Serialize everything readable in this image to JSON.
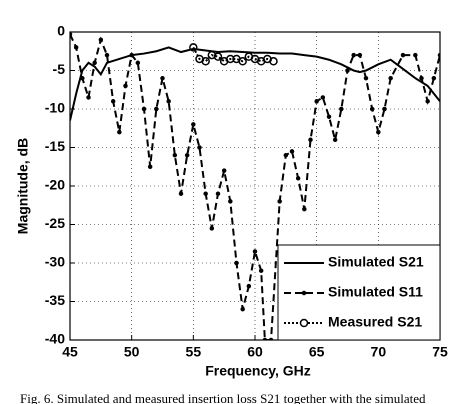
{
  "chart_data": {
    "type": "line",
    "xlabel": "Frequency, GHz",
    "ylabel": "Magnitude, dB",
    "caption": "Fig. 6. Simulated and measured insertion loss S21 together with the simulated",
    "xlim": [
      45,
      75
    ],
    "xticks": [
      45,
      50,
      55,
      60,
      65,
      70,
      75
    ],
    "ylim": [
      -40,
      0
    ],
    "yticks": [
      -40,
      -35,
      -30,
      -25,
      -20,
      -15,
      -10,
      -5,
      0
    ],
    "grid": true,
    "legend": "lower right",
    "series": [
      {
        "name": "Simulated S21",
        "color": "#000000",
        "style": "solid",
        "marker": "none",
        "x": [
          45,
          45.5,
          46,
          46.5,
          47,
          47.5,
          48,
          49,
          50,
          51,
          52,
          53,
          54,
          55,
          56,
          57,
          58,
          59,
          60,
          61,
          62,
          63,
          64,
          65,
          66,
          67,
          68,
          68.5,
          69,
          70,
          71,
          72,
          73,
          74,
          75
        ],
        "values": [
          -11.5,
          -8,
          -5,
          -4,
          -4.5,
          -5.5,
          -4,
          -3.5,
          -3,
          -2.8,
          -2.5,
          -2,
          -2.6,
          -2.2,
          -2.4,
          -2.6,
          -2.5,
          -2.6,
          -2.7,
          -2.7,
          -2.8,
          -2.8,
          -3,
          -3.2,
          -3.6,
          -4.2,
          -5,
          -5.2,
          -5,
          -4.2,
          -3.6,
          -4.8,
          -6,
          -7,
          -9
        ]
      },
      {
        "name": "Simulated S11",
        "color": "#000000",
        "style": "dashed",
        "marker": "dot",
        "x": [
          45,
          45.5,
          46,
          46.5,
          47,
          47.5,
          48,
          48.5,
          49,
          49.5,
          50,
          50.5,
          51,
          51.5,
          52,
          52.5,
          53,
          53.5,
          54,
          54.5,
          55,
          55.5,
          56,
          56.5,
          57,
          57.5,
          58,
          58.5,
          59,
          59.5,
          60,
          60.5,
          60.8,
          61.3,
          62,
          62.5,
          63,
          63.5,
          64,
          64.5,
          65,
          65.5,
          66,
          66.5,
          67,
          67.5,
          68,
          68.5,
          69,
          69.5,
          70,
          70.5,
          71,
          72,
          73,
          73.5,
          74,
          74.5,
          75
        ],
        "values": [
          -0.3,
          -2,
          -6,
          -8.5,
          -4,
          -1,
          -3,
          -9,
          -13,
          -7,
          -3,
          -4,
          -10,
          -17.5,
          -10,
          -6,
          -9,
          -16,
          -21,
          -16,
          -12,
          -15,
          -21,
          -25.5,
          -21,
          -18,
          -22,
          -30,
          -36,
          -33,
          -28.5,
          -31,
          -40,
          -40,
          -22,
          -16,
          -15.5,
          -19,
          -23,
          -14,
          -9,
          -8.5,
          -11,
          -14,
          -10,
          -5,
          -3,
          -3,
          -6,
          -10,
          -13,
          -10,
          -6,
          -3,
          -3,
          -6,
          -9,
          -6,
          -3
        ]
      },
      {
        "name": "Measured S21",
        "color": "#000000",
        "style": "dotted",
        "marker": "circle",
        "x": [
          55,
          55.5,
          56,
          56.5,
          57,
          57.5,
          58,
          58.5,
          59,
          59.5,
          60,
          60.5,
          61,
          61.5
        ],
        "values": [
          -2,
          -3.5,
          -3.8,
          -3,
          -3.2,
          -3.8,
          -3.5,
          -3.5,
          -3.8,
          -3.2,
          -3.5,
          -3.8,
          -3.5,
          -3.8
        ]
      }
    ]
  }
}
